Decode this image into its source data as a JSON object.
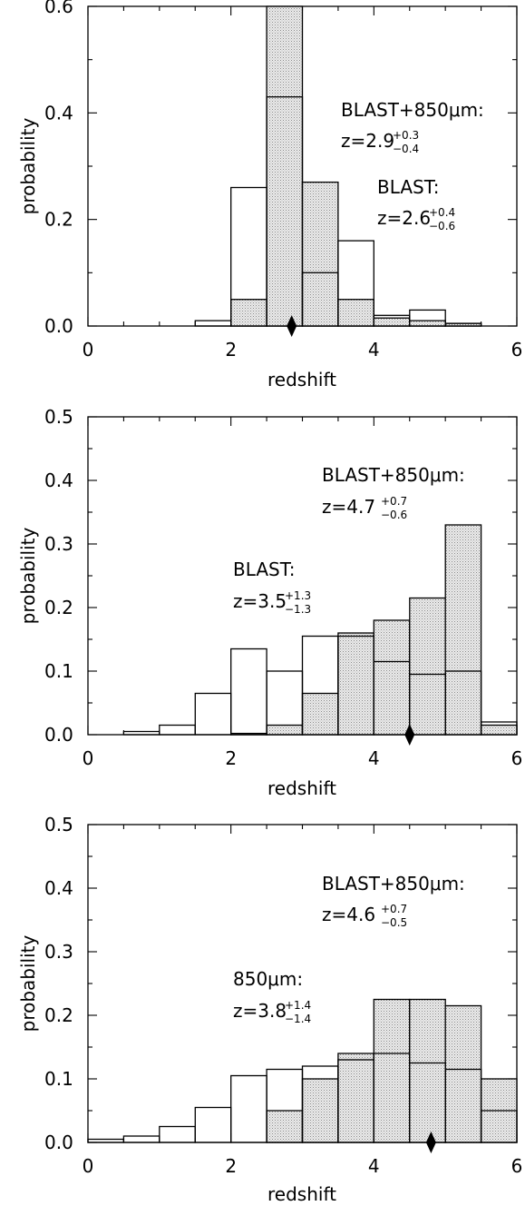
{
  "chart_data": [
    {
      "type": "histogram",
      "xlabel": "redshift",
      "ylabel": "probability",
      "xlim": [
        0,
        6
      ],
      "ylim": [
        0,
        0.6
      ],
      "xticks": [
        "0",
        "2",
        "4",
        "6"
      ],
      "yticks": [
        "0.0",
        "0.2",
        "0.4",
        "0.6"
      ],
      "bin_edges": [
        0,
        0.5,
        1.0,
        1.5,
        2.0,
        2.5,
        3.0,
        3.5,
        4.0,
        4.5,
        5.0,
        5.5,
        6.0
      ],
      "series": [
        {
          "style": "open",
          "values": [
            0,
            0,
            0,
            0.01,
            0.26,
            0.43,
            0.1,
            0.16,
            0.02,
            0.03,
            0.005,
            0
          ]
        },
        {
          "style": "shaded",
          "values": [
            0,
            0,
            0,
            0,
            0.05,
            0.6,
            0.27,
            0.05,
            0.015,
            0.01,
            0.005,
            0
          ]
        }
      ],
      "marker_x": 2.85,
      "annotations": [
        {
          "label": "BLAST+850μm:",
          "z_prefix": "z=2.9",
          "err_plus": "+0.3",
          "err_minus": "−0.4"
        },
        {
          "label": "BLAST:",
          "z_prefix": "z=2.6",
          "err_plus": "+0.4",
          "err_minus": "−0.6"
        }
      ]
    },
    {
      "type": "histogram",
      "xlabel": "redshift",
      "ylabel": "probability",
      "xlim": [
        0,
        6
      ],
      "ylim": [
        0,
        0.5
      ],
      "xticks": [
        "0",
        "2",
        "4",
        "6"
      ],
      "yticks": [
        "0.0",
        "0.1",
        "0.2",
        "0.3",
        "0.4",
        "0.5"
      ],
      "bin_edges": [
        0,
        0.5,
        1.0,
        1.5,
        2.0,
        2.5,
        3.0,
        3.5,
        4.0,
        4.5,
        5.0,
        5.5,
        6.0
      ],
      "series": [
        {
          "style": "open",
          "values": [
            0,
            0.005,
            0.015,
            0.065,
            0.135,
            0.1,
            0.155,
            0.155,
            0.115,
            0.095,
            0.1,
            0.02
          ]
        },
        {
          "style": "shaded",
          "values": [
            0,
            0,
            0,
            0,
            0.002,
            0.015,
            0.065,
            0.16,
            0.18,
            0.215,
            0.33,
            0.015
          ]
        }
      ],
      "marker_x": 4.5,
      "annotations": [
        {
          "label": "BLAST+850μm:",
          "z_prefix": "z=4.7",
          "err_plus": "+0.7",
          "err_minus": "−0.6"
        },
        {
          "label": "BLAST:",
          "z_prefix": "z=3.5",
          "err_plus": "+1.3",
          "err_minus": "−1.3"
        }
      ]
    },
    {
      "type": "histogram",
      "xlabel": "redshift",
      "ylabel": "probability",
      "xlim": [
        0,
        6
      ],
      "ylim": [
        0,
        0.5
      ],
      "xticks": [
        "0",
        "2",
        "4",
        "6"
      ],
      "yticks": [
        "0.0",
        "0.1",
        "0.2",
        "0.3",
        "0.4",
        "0.5"
      ],
      "bin_edges": [
        0,
        0.5,
        1.0,
        1.5,
        2.0,
        2.5,
        3.0,
        3.5,
        4.0,
        4.5,
        5.0,
        5.5,
        6.0
      ],
      "series": [
        {
          "style": "open",
          "values": [
            0.005,
            0.01,
            0.025,
            0.055,
            0.105,
            0.115,
            0.12,
            0.13,
            0.14,
            0.125,
            0.115,
            0.05
          ]
        },
        {
          "style": "shaded",
          "values": [
            0,
            0,
            0,
            0,
            0,
            0.05,
            0.1,
            0.14,
            0.225,
            0.225,
            0.215,
            0.1
          ]
        }
      ],
      "marker_x": 4.8,
      "annotations": [
        {
          "label": "BLAST+850μm:",
          "z_prefix": "z=4.6",
          "err_plus": "+0.7",
          "err_minus": "−0.5"
        },
        {
          "label": "850μm:",
          "z_prefix": "z=3.8",
          "err_plus": "+1.4",
          "err_minus": "−1.4"
        }
      ]
    }
  ]
}
